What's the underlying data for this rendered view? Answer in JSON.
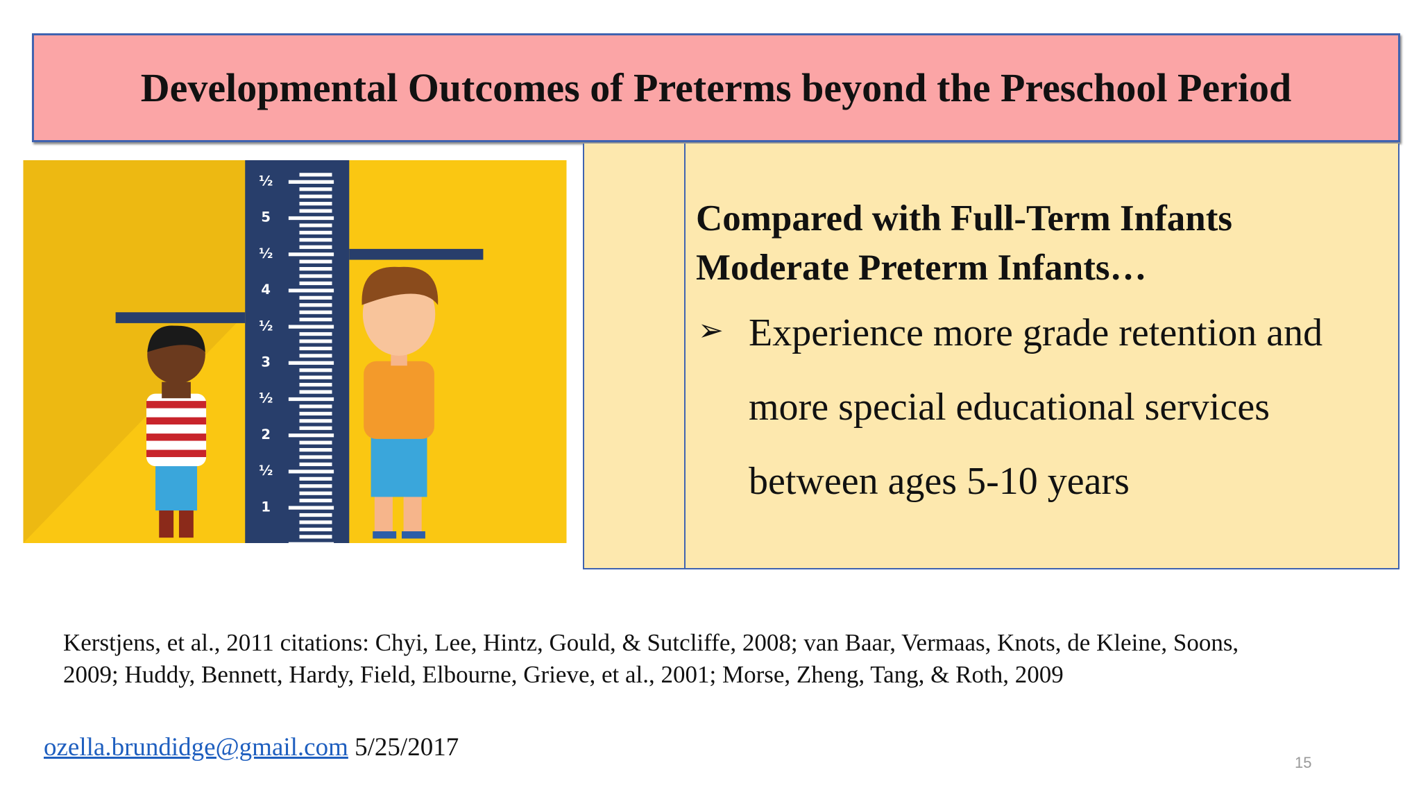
{
  "slide": {
    "title": "Developmental Outcomes of Preterms beyond the Preschool Period",
    "illustration": {
      "ruler_labels": [
        "½",
        "5",
        "½",
        "4",
        "½",
        "3",
        "½",
        "2",
        "½",
        "1"
      ]
    },
    "panel": {
      "heading": [
        "Compared with Full-Term Infants",
        "Moderate Preterm Infants…"
      ],
      "bullet_marker": "➢",
      "bullet_lines": [
        "Experience more grade retention and",
        "more special educational services",
        "between ages 5-10 years"
      ]
    },
    "citation": [
      "Kerstjens, et al., 2011 citations:  Chyi, Lee, Hintz, Gould, & Sutcliffe, 2008;  van Baar, Vermaas, Knots, de Kleine, Soons,",
      "2009; Huddy, Bennett, Hardy, Field, Elbourne, Grieve, et al., 2001; Morse, Zheng, Tang, & Roth, 2009"
    ],
    "footer": {
      "email": "ozella.brundidge@gmail.com",
      "date": "5/25/2017",
      "page_number": "15"
    }
  }
}
